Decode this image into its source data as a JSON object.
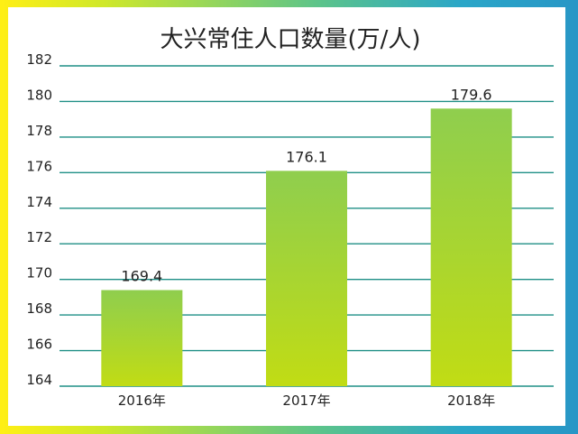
{
  "colors": {
    "frame_left": "#ffef14",
    "frame_right": "#2896c6",
    "gridline": "#1f8f86",
    "bar_top": "#8fce4e",
    "bar_bottom": "#c1dc14",
    "text": "#222222"
  },
  "chart_data": {
    "type": "bar",
    "title": "大兴常住人口数量(万/人)",
    "xlabel": "",
    "ylabel": "",
    "categories": [
      "2016年",
      "2017年",
      "2018年"
    ],
    "values": [
      169.4,
      176.1,
      179.6
    ],
    "data_labels": [
      "169.4",
      "176.1",
      "179.6"
    ],
    "ylim": [
      164,
      182
    ],
    "yticks": [
      164,
      166,
      168,
      170,
      172,
      174,
      176,
      178,
      180,
      182
    ],
    "grid": true,
    "legend": "none"
  }
}
